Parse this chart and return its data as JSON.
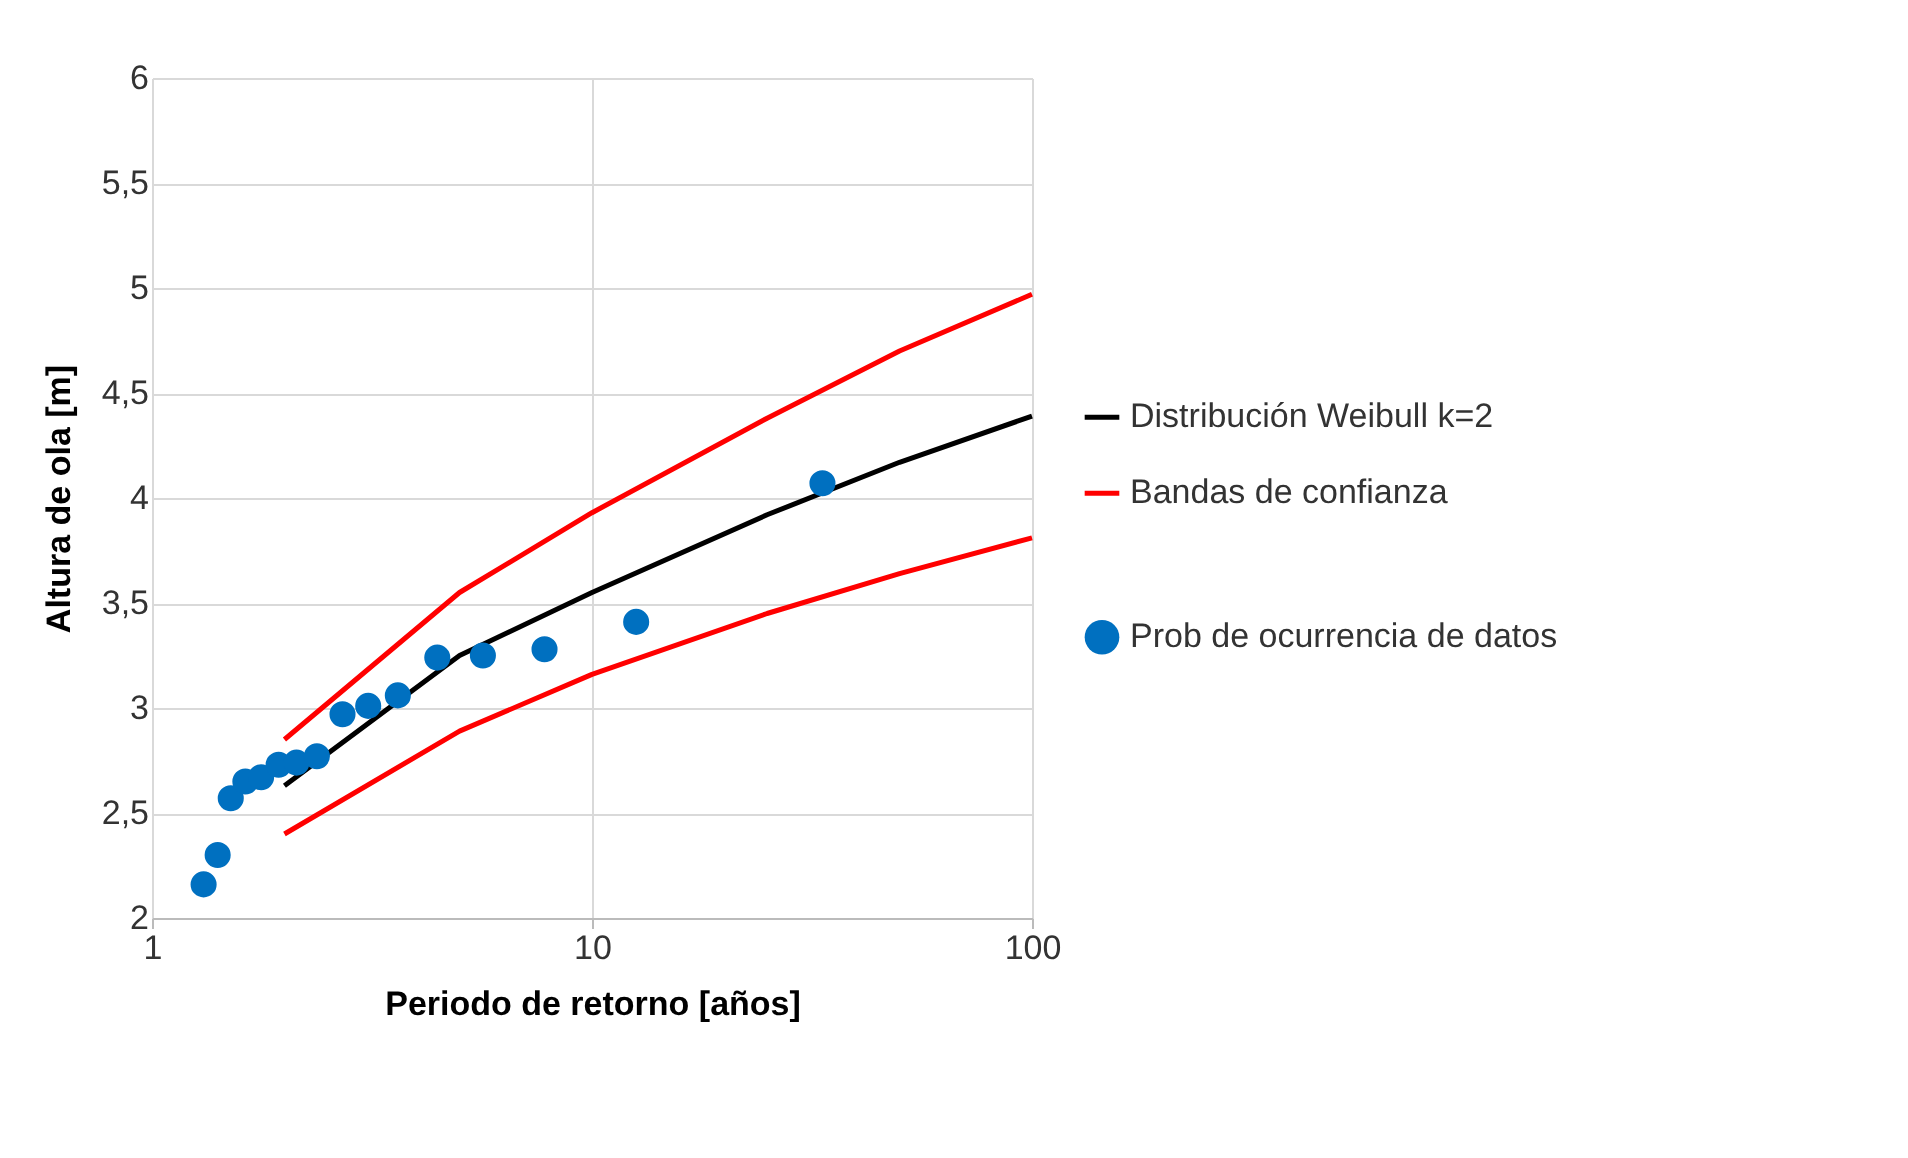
{
  "chart_data": {
    "type": "line",
    "xlabel": "Periodo de retorno [años]",
    "ylabel": "Altura de ola  [m]",
    "log": "x",
    "xlim": [
      1,
      100
    ],
    "xticks": [
      1,
      10,
      100
    ],
    "ylim": [
      2,
      6
    ],
    "yticks": [
      2,
      {
        "value": 2.5,
        "label": "2,5"
      },
      3,
      {
        "value": 3.5,
        "label": "3,5"
      },
      4,
      {
        "value": 4.5,
        "label": "4,5"
      },
      5,
      {
        "value": 5.5,
        "label": "5,5"
      },
      6
    ],
    "grid": true,
    "legend": "right",
    "series": [
      {
        "name": "Distribución Weibull k=2",
        "color": "#000000",
        "x": [
          2,
          5,
          10,
          25,
          50,
          100
        ],
        "values": [
          2.63,
          3.25,
          3.55,
          3.92,
          4.17,
          4.39
        ]
      },
      {
        "name": "Bandas de confianza",
        "color": "#ff0000",
        "x": [
          2,
          5,
          10,
          25,
          50,
          100
        ],
        "values": [
          2.85,
          3.55,
          3.93,
          4.38,
          4.7,
          4.97
        ]
      },
      {
        "color": "#ff0000",
        "x": [
          2,
          5,
          10,
          25,
          50,
          100
        ],
        "values": [
          2.4,
          2.89,
          3.16,
          3.45,
          3.64,
          3.81
        ]
      },
      {
        "name": "Prob de ocurrencia de datos",
        "color": "#0070c0",
        "type": "scatter",
        "marker": "circle",
        "x": [
          1.31,
          1.41,
          1.51,
          1.63,
          1.77,
          1.94,
          2.13,
          2.37,
          2.71,
          3.1,
          3.62,
          4.45,
          5.65,
          7.8,
          12.6,
          33.4
        ],
        "values": [
          2.16,
          2.3,
          2.57,
          2.65,
          2.67,
          2.73,
          2.74,
          2.77,
          2.97,
          3.01,
          3.06,
          3.24,
          3.25,
          3.28,
          3.41,
          4.07
        ]
      }
    ]
  }
}
